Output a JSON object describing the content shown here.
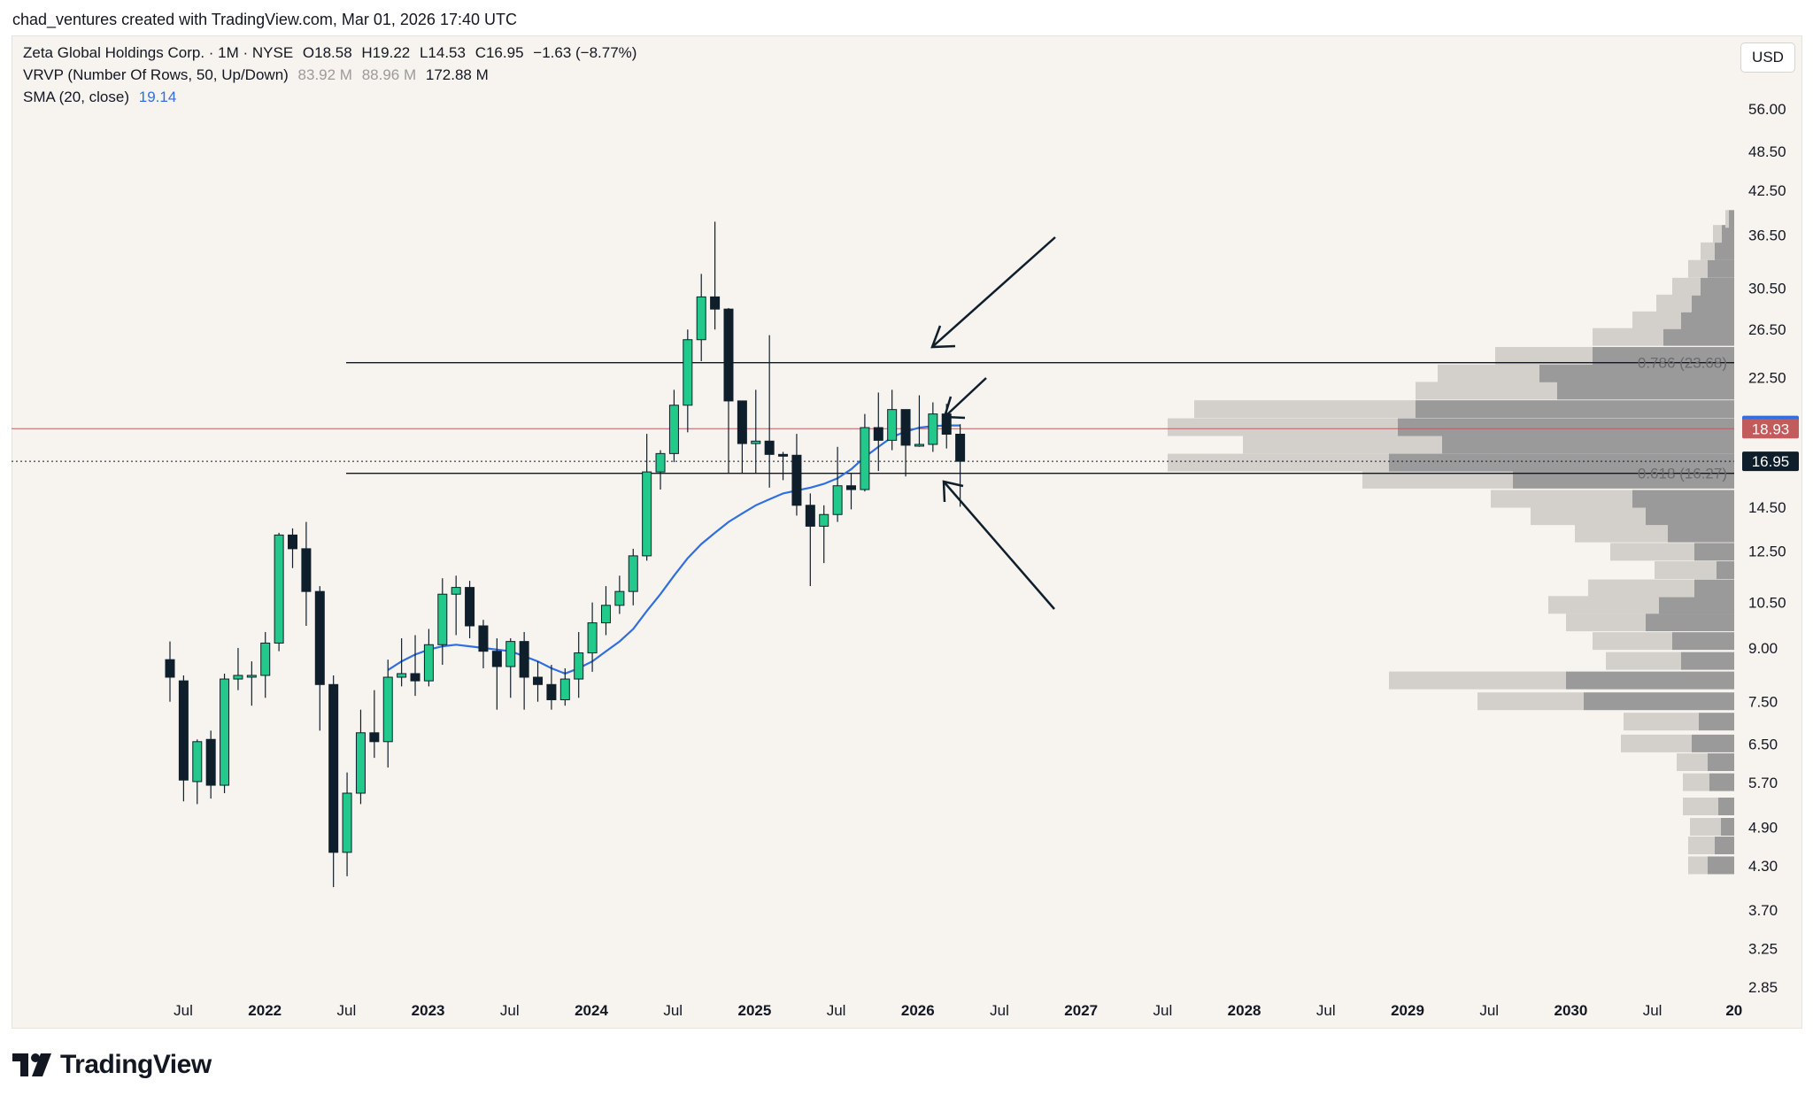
{
  "credit": "chad_ventures created with TradingView.com, Mar 01, 2026 17:40 UTC",
  "legend": {
    "title": "Zeta Global Holdings Corp. · 1M · NYSE",
    "ohlc": {
      "o": "O18.58",
      "h": "H19.22",
      "l": "L14.53",
      "c": "C16.95",
      "chg": "−1.63 (−8.77%)"
    },
    "vrvp": {
      "label": "VRVP (Number Of Rows, 50, Up/Down)",
      "up": "83.92 M",
      "down": "88.96 M",
      "total": "172.88 M"
    },
    "sma": {
      "label": "SMA (20, close)",
      "value": "19.14"
    }
  },
  "currency": "USD",
  "brand": "TradingView",
  "colors": {
    "up": "#22c98a",
    "down": "#0f1e2b",
    "sma": "#2f6fe0",
    "last_price_line": "#c25b5b",
    "vol_up": "#9a9a9a",
    "vol_down": "#d3d0cc",
    "bg": "#f7f4f0"
  },
  "chart_data": {
    "type": "candlestick",
    "y_scale": "log",
    "y_ticks": [
      "56.00",
      "48.50",
      "42.50",
      "36.50",
      "30.50",
      "26.50",
      "22.50",
      "19.14",
      "18.93",
      "16.95",
      "14.50",
      "12.50",
      "10.50",
      "9.00",
      "7.50",
      "6.50",
      "5.70",
      "4.90",
      "4.30",
      "3.70",
      "3.25",
      "2.85"
    ],
    "x_ticks": [
      {
        "label": "Jul",
        "bold": false
      },
      {
        "label": "2022",
        "bold": true
      },
      {
        "label": "Jul",
        "bold": false
      },
      {
        "label": "2023",
        "bold": true
      },
      {
        "label": "Jul",
        "bold": false
      },
      {
        "label": "2024",
        "bold": true
      },
      {
        "label": "Jul",
        "bold": false
      },
      {
        "label": "2025",
        "bold": true
      },
      {
        "label": "Jul",
        "bold": false
      },
      {
        "label": "2026",
        "bold": true
      },
      {
        "label": "Jul",
        "bold": false
      },
      {
        "label": "2027",
        "bold": true
      },
      {
        "label": "Jul",
        "bold": false
      },
      {
        "label": "2028",
        "bold": true
      },
      {
        "label": "Jul",
        "bold": false
      },
      {
        "label": "2029",
        "bold": true
      },
      {
        "label": "Jul",
        "bold": false
      },
      {
        "label": "2030",
        "bold": true
      },
      {
        "label": "Jul",
        "bold": false
      },
      {
        "label": "20",
        "bold": true
      }
    ],
    "candles": [
      [
        8.65,
        8.15,
        9.2,
        7.5
      ],
      [
        8.05,
        5.75,
        8.2,
        5.35
      ],
      [
        5.72,
        6.55,
        6.6,
        5.3
      ],
      [
        6.6,
        5.65,
        6.8,
        5.4
      ],
      [
        5.65,
        8.1,
        8.25,
        5.5
      ],
      [
        8.1,
        8.2,
        9.0,
        7.8
      ],
      [
        8.2,
        8.2,
        8.6,
        7.4
      ],
      [
        8.2,
        9.15,
        9.5,
        7.6
      ],
      [
        9.15,
        13.2,
        13.3,
        8.9
      ],
      [
        13.2,
        12.6,
        13.5,
        11.8
      ],
      [
        12.6,
        10.9,
        13.8,
        9.7
      ],
      [
        10.9,
        7.95,
        11.1,
        6.8
      ],
      [
        7.95,
        4.5,
        8.2,
        4.0
      ],
      [
        4.5,
        5.5,
        5.9,
        4.15
      ],
      [
        5.5,
        6.75,
        7.3,
        5.3
      ],
      [
        6.75,
        6.55,
        7.8,
        6.2
      ],
      [
        6.55,
        8.15,
        8.65,
        6.0
      ],
      [
        8.15,
        8.25,
        9.3,
        7.9
      ],
      [
        8.25,
        8.05,
        9.4,
        7.65
      ],
      [
        8.05,
        9.1,
        9.6,
        7.9
      ],
      [
        9.1,
        10.8,
        11.4,
        8.5
      ],
      [
        10.8,
        11.05,
        11.5,
        9.4
      ],
      [
        11.05,
        9.7,
        11.3,
        9.3
      ],
      [
        9.7,
        8.9,
        9.9,
        8.4
      ],
      [
        8.9,
        8.45,
        9.3,
        7.3
      ],
      [
        8.45,
        9.2,
        9.3,
        7.6
      ],
      [
        9.2,
        8.15,
        9.5,
        7.3
      ],
      [
        8.15,
        7.95,
        8.6,
        7.5
      ],
      [
        7.95,
        7.55,
        8.5,
        7.3
      ],
      [
        7.55,
        8.1,
        8.4,
        7.4
      ],
      [
        8.1,
        8.85,
        9.5,
        7.6
      ],
      [
        8.85,
        9.8,
        10.5,
        8.3
      ],
      [
        9.8,
        10.4,
        11.1,
        9.4
      ],
      [
        10.4,
        10.9,
        11.5,
        10.1
      ],
      [
        10.9,
        12.3,
        12.6,
        10.4
      ],
      [
        12.3,
        16.35,
        18.6,
        12.1
      ],
      [
        16.35,
        17.4,
        17.6,
        15.4
      ],
      [
        17.4,
        20.5,
        21.6,
        16.9
      ],
      [
        20.5,
        25.6,
        26.5,
        18.7
      ],
      [
        25.6,
        29.6,
        32.0,
        23.8
      ],
      [
        29.6,
        28.4,
        38.2,
        26.5
      ],
      [
        28.4,
        20.8,
        28.5,
        16.3
      ],
      [
        20.8,
        18.0,
        20.8,
        16.3
      ],
      [
        18.0,
        18.15,
        21.6,
        16.3
      ],
      [
        18.15,
        17.35,
        26.0,
        15.5
      ],
      [
        17.35,
        17.3,
        17.5,
        15.9
      ],
      [
        17.3,
        14.6,
        18.6,
        14.1
      ],
      [
        14.6,
        13.6,
        15.2,
        11.1
      ],
      [
        13.6,
        14.15,
        14.6,
        12.0
      ],
      [
        14.15,
        15.6,
        17.8,
        13.8
      ],
      [
        15.6,
        15.4,
        16.3,
        14.4
      ],
      [
        15.4,
        19.0,
        19.9,
        15.3
      ],
      [
        19.0,
        18.2,
        21.4,
        16.4
      ],
      [
        18.2,
        20.2,
        21.6,
        17.6
      ],
      [
        20.2,
        17.9,
        20.2,
        16.1
      ],
      [
        17.9,
        17.95,
        21.2,
        17.8
      ],
      [
        17.95,
        19.9,
        20.7,
        17.5
      ],
      [
        19.9,
        18.58,
        20.6,
        17.7
      ],
      [
        18.58,
        16.95,
        19.22,
        14.53
      ]
    ],
    "sma": [
      [
        16,
        8.35
      ],
      [
        17,
        8.6
      ],
      [
        18,
        8.8
      ],
      [
        19,
        8.95
      ],
      [
        20,
        9.05
      ],
      [
        21,
        9.1
      ],
      [
        22,
        9.05
      ],
      [
        23,
        9.0
      ],
      [
        24,
        8.95
      ],
      [
        25,
        8.9
      ],
      [
        26,
        8.75
      ],
      [
        27,
        8.6
      ],
      [
        28,
        8.4
      ],
      [
        29,
        8.25
      ],
      [
        30,
        8.4
      ],
      [
        31,
        8.6
      ],
      [
        32,
        8.9
      ],
      [
        33,
        9.2
      ],
      [
        34,
        9.6
      ],
      [
        35,
        10.2
      ],
      [
        36,
        10.8
      ],
      [
        37,
        11.5
      ],
      [
        38,
        12.2
      ],
      [
        39,
        12.8
      ],
      [
        40,
        13.3
      ],
      [
        41,
        13.8
      ],
      [
        42,
        14.2
      ],
      [
        43,
        14.6
      ],
      [
        44,
        14.9
      ],
      [
        45,
        15.2
      ],
      [
        46,
        15.35
      ],
      [
        47,
        15.5
      ],
      [
        48,
        15.7
      ],
      [
        49,
        16.0
      ],
      [
        50,
        16.5
      ],
      [
        51,
        17.2
      ],
      [
        52,
        17.8
      ],
      [
        53,
        18.4
      ],
      [
        54,
        18.75
      ],
      [
        55,
        19.0
      ],
      [
        56,
        19.1
      ],
      [
        57,
        19.14
      ],
      [
        58,
        19.14
      ]
    ],
    "fib_levels": [
      {
        "label": "0.786 (23.68)",
        "price": 23.68
      },
      {
        "label": "0.618 (16.27)",
        "price": 16.27
      }
    ],
    "price_badges": [
      {
        "label": "19.14",
        "price": 19.14,
        "color": "#2f6fe0"
      },
      {
        "label": "18.93",
        "price": 18.93,
        "color": "#c25b5b"
      },
      {
        "label": "16.95",
        "price": 16.95,
        "color": "#0f1e2b"
      }
    ],
    "last_close_line": 18.93,
    "current_price_line": 16.95,
    "volume_profile": [
      [
        4.3,
        30,
        22
      ],
      [
        4.6,
        22,
        30
      ],
      [
        4.9,
        15,
        35
      ],
      [
        5.25,
        18,
        40
      ],
      [
        5.7,
        28,
        30
      ],
      [
        6.1,
        30,
        35
      ],
      [
        6.5,
        48,
        80
      ],
      [
        7.0,
        40,
        85
      ],
      [
        7.5,
        170,
        120
      ],
      [
        8.05,
        190,
        200
      ],
      [
        8.6,
        60,
        85
      ],
      [
        9.2,
        70,
        90
      ],
      [
        9.8,
        100,
        90
      ],
      [
        10.4,
        85,
        125
      ],
      [
        11.0,
        45,
        120
      ],
      [
        11.7,
        20,
        70
      ],
      [
        12.45,
        45,
        95
      ],
      [
        13.25,
        75,
        105
      ],
      [
        14.05,
        100,
        130
      ],
      [
        14.9,
        115,
        160
      ],
      [
        15.9,
        250,
        170
      ],
      [
        16.85,
        390,
        250
      ],
      [
        17.9,
        330,
        225
      ],
      [
        19.0,
        380,
        260
      ],
      [
        20.2,
        360,
        250
      ],
      [
        21.5,
        200,
        160
      ],
      [
        22.8,
        220,
        115
      ],
      [
        24.2,
        160,
        110
      ],
      [
        25.8,
        80,
        80
      ],
      [
        27.3,
        60,
        55
      ],
      [
        28.9,
        48,
        40
      ],
      [
        30.6,
        38,
        32
      ],
      [
        32.5,
        30,
        22
      ],
      [
        34.5,
        22,
        16
      ],
      [
        36.6,
        14,
        10
      ],
      [
        38.5,
        6,
        4
      ]
    ]
  }
}
